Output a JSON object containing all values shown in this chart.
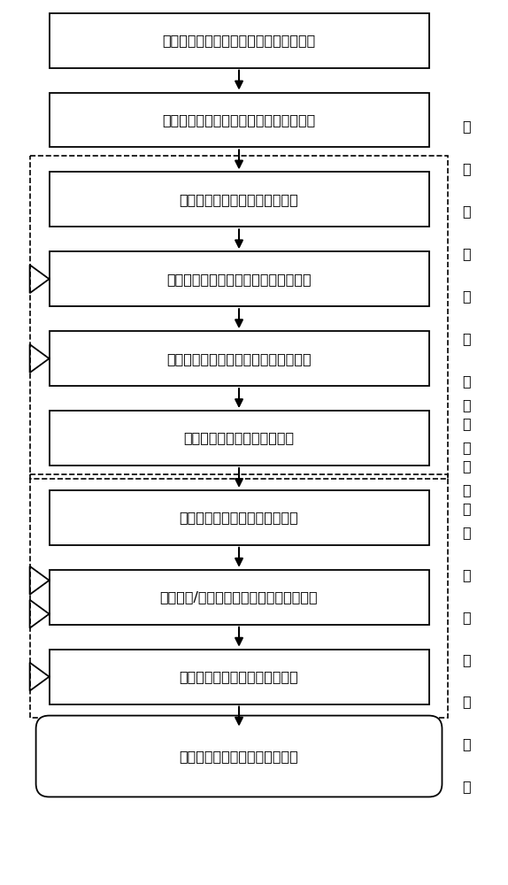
{
  "boxes": [
    {
      "text": "平板隔声系统固有属性与隔声性能的建模",
      "bold": false,
      "rounded": false
    },
    {
      "text": "不确定参数灵敏度分析与区间模型定量化",
      "bold": false,
      "rounded": false
    },
    {
      "text": "区间参数空间内高斯积分点抽样",
      "bold": false,
      "rounded": false
    },
    {
      "text": "区间参数样本点处平板系统固有属性值",
      "bold": false,
      "rounded": false
    },
    {
      "text": "固有属性的最佳平方逼近及最值点计算",
      "bold": false,
      "rounded": false
    },
    {
      "text": "界定平板最佳隔声性能频率段",
      "bold": true,
      "rounded": false
    },
    {
      "text": "区间参数空间内高斯积分点抽样",
      "bold": false,
      "rounded": false
    },
    {
      "text": "给定频率/区间参数样本点处平板隔声量值",
      "bold": false,
      "rounded": false
    },
    {
      "text": "最佳平方逼近及隔声量区间界限",
      "bold": false,
      "rounded": false
    }
  ],
  "terminal_box": {
    "text": "平板隔声性能区间界限频响分布",
    "rounded": true
  },
  "label1_chars": [
    "不",
    "确",
    "定",
    "性",
    "固",
    "有",
    "属",
    "性",
    "预",
    "测"
  ],
  "label2_chars": [
    "不",
    "确",
    "定",
    "性",
    "隔",
    "声",
    "性",
    "能",
    "预",
    "测"
  ],
  "bg_color": "#ffffff",
  "box_color": "#ffffff",
  "box_edge": "#000000",
  "arrow_color": "#000000",
  "text_color": "#000000",
  "font_size": 11.5,
  "label_font_size": 11.5
}
